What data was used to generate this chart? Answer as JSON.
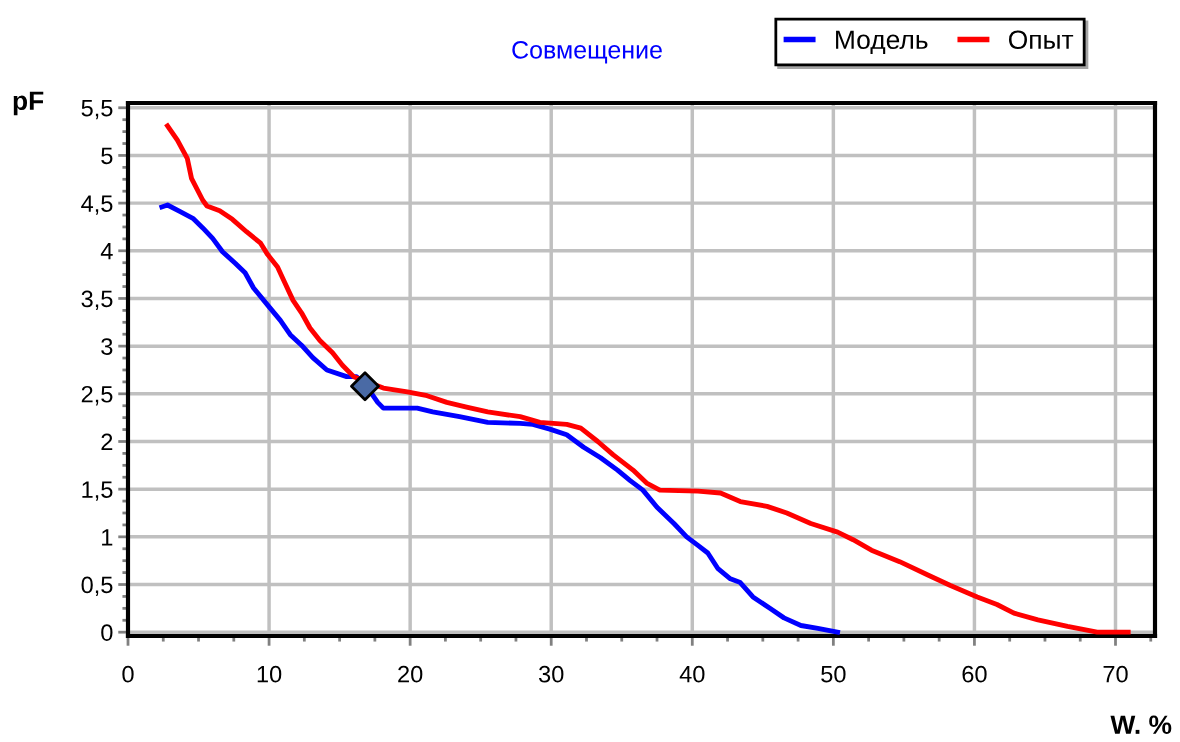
{
  "chart_data": {
    "type": "line",
    "title": "Совмещение",
    "xlabel": "W. %",
    "ylabel": "pF",
    "xlim": [
      0,
      72.8
    ],
    "ylim": [
      -0.04,
      5.55
    ],
    "xticks": [
      0,
      10,
      20,
      30,
      40,
      50,
      60,
      70
    ],
    "yticks": [
      {
        "value": 0,
        "label": "0"
      },
      {
        "value": 0.5,
        "label": "0,5"
      },
      {
        "value": 1,
        "label": "1"
      },
      {
        "value": 1.5,
        "label": "1,5"
      },
      {
        "value": 2,
        "label": "2"
      },
      {
        "value": 2.5,
        "label": "2,5"
      },
      {
        "value": 3,
        "label": "3"
      },
      {
        "value": 3.5,
        "label": "3,5"
      },
      {
        "value": 4,
        "label": "4"
      },
      {
        "value": 4.5,
        "label": "4,5"
      },
      {
        "value": 5,
        "label": "5"
      },
      {
        "value": 5.5,
        "label": "5,5"
      }
    ],
    "grid": true,
    "legend": "top right",
    "marker": "none",
    "line_style": "solid",
    "series": [
      {
        "name": "Модель",
        "color": "#0000ff",
        "x": [
          2.4,
          2.8,
          3.7,
          4.6,
          5.3,
          6.0,
          6.7,
          7.6,
          8.3,
          8.9,
          9.9,
          10.8,
          11.5,
          12.3,
          13.1,
          14.1,
          15.5,
          16.2,
          16.9,
          17.7,
          18.1,
          20.5,
          21.6,
          23.5,
          25.5,
          27.8,
          28.7,
          29.9,
          31.1,
          32.3,
          33.5,
          34.7,
          35.6,
          36.5,
          37.5,
          38.7,
          39.6,
          40.4,
          41.1,
          41.8,
          42.7,
          43.4,
          44.3,
          45.5,
          46.5,
          47.7,
          48.9,
          50.3
        ],
        "values": [
          4.46,
          4.48,
          4.41,
          4.34,
          4.24,
          4.13,
          3.99,
          3.87,
          3.77,
          3.61,
          3.43,
          3.27,
          3.12,
          3.01,
          2.88,
          2.75,
          2.68,
          2.68,
          2.58,
          2.41,
          2.35,
          2.35,
          2.31,
          2.26,
          2.2,
          2.19,
          2.18,
          2.13,
          2.07,
          1.94,
          1.83,
          1.7,
          1.59,
          1.49,
          1.31,
          1.14,
          1.0,
          0.91,
          0.83,
          0.67,
          0.56,
          0.52,
          0.37,
          0.25,
          0.15,
          0.07,
          0.04,
          0.0
        ]
      },
      {
        "name": "Опыт",
        "color": "#ff0000",
        "x": [
          2.8,
          3.5,
          4.2,
          4.5,
          5.3,
          5.6,
          6.5,
          7.4,
          8.4,
          9.4,
          9.9,
          10.6,
          11.1,
          11.7,
          12.3,
          12.9,
          13.6,
          14.5,
          15.2,
          16.0,
          18.1,
          19.8,
          21.2,
          22.6,
          24.0,
          25.5,
          27.8,
          29.2,
          31.1,
          32.1,
          33.3,
          34.4,
          35.8,
          36.8,
          37.7,
          40.4,
          42.0,
          43.4,
          45.3,
          46.7,
          48.4,
          50.3,
          51.4,
          52.7,
          54.7,
          56.7,
          58.3,
          60.2,
          61.6,
          62.8,
          64.5,
          66.6,
          68.7,
          70.9
        ],
        "values": [
          5.31,
          5.16,
          4.97,
          4.76,
          4.53,
          4.47,
          4.42,
          4.33,
          4.2,
          4.08,
          3.96,
          3.83,
          3.67,
          3.48,
          3.35,
          3.19,
          3.06,
          2.93,
          2.8,
          2.68,
          2.56,
          2.52,
          2.48,
          2.41,
          2.36,
          2.31,
          2.26,
          2.2,
          2.18,
          2.14,
          2.0,
          1.86,
          1.7,
          1.56,
          1.49,
          1.48,
          1.46,
          1.37,
          1.32,
          1.25,
          1.14,
          1.05,
          0.97,
          0.86,
          0.74,
          0.6,
          0.49,
          0.37,
          0.29,
          0.2,
          0.13,
          0.06,
          0.0,
          0.0
        ]
      },
      {
        "type": "scatter",
        "color": "#4a6aa5",
        "marker": "diamond",
        "x": [
          16.8
        ],
        "values": [
          2.58
        ]
      }
    ]
  }
}
